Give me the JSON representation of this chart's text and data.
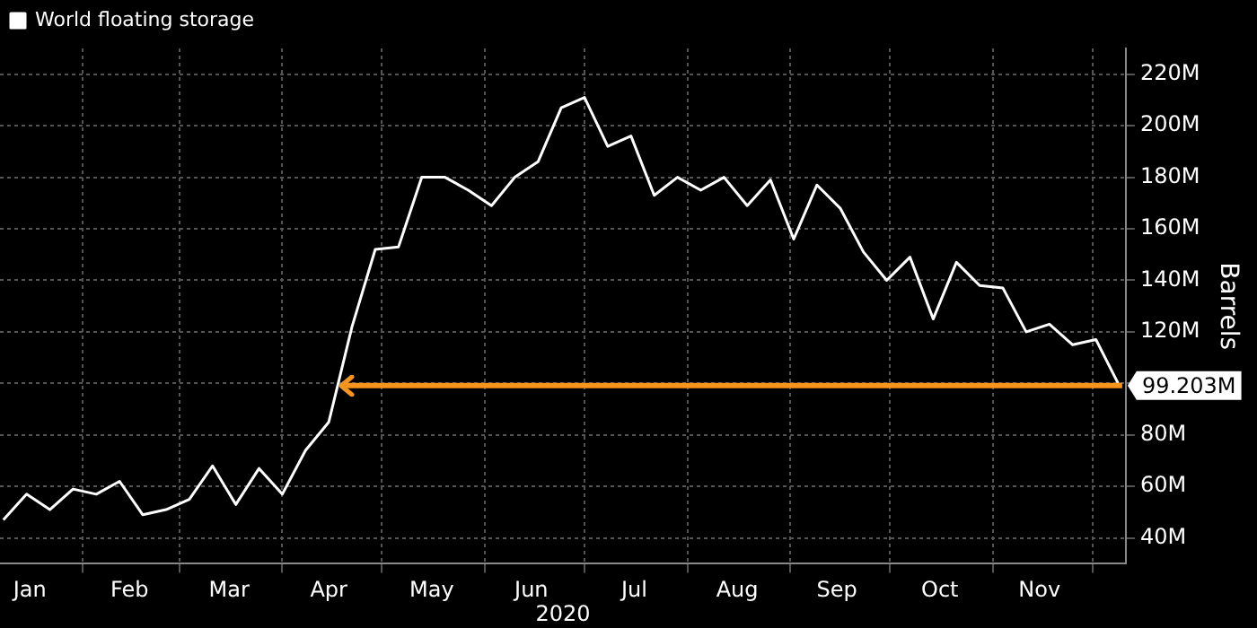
{
  "chart_data": {
    "type": "line",
    "xlabel": "2020",
    "ylabel": "Barrels",
    "x": [
      "2020-01-08",
      "2020-01-15",
      "2020-01-22",
      "2020-01-29",
      "2020-02-05",
      "2020-02-12",
      "2020-02-19",
      "2020-02-26",
      "2020-03-04",
      "2020-03-11",
      "2020-03-18",
      "2020-03-25",
      "2020-04-01",
      "2020-04-08",
      "2020-04-15",
      "2020-04-22",
      "2020-04-29",
      "2020-05-06",
      "2020-05-13",
      "2020-05-20",
      "2020-05-27",
      "2020-06-03",
      "2020-06-10",
      "2020-06-17",
      "2020-06-24",
      "2020-07-01",
      "2020-07-08",
      "2020-07-15",
      "2020-07-22",
      "2020-07-29",
      "2020-08-05",
      "2020-08-12",
      "2020-08-19",
      "2020-08-26",
      "2020-09-02",
      "2020-09-09",
      "2020-09-16",
      "2020-09-23",
      "2020-09-30",
      "2020-10-07",
      "2020-10-14",
      "2020-10-21",
      "2020-10-28",
      "2020-11-04",
      "2020-11-11",
      "2020-11-18",
      "2020-11-25",
      "2020-12-02",
      "2020-12-09"
    ],
    "series": [
      {
        "name": "World floating storage",
        "color": "#ffffff",
        "values": [
          47,
          57,
          51,
          59,
          57,
          62,
          49,
          51,
          55,
          68,
          53,
          67,
          57,
          74,
          85,
          122,
          152,
          153,
          180,
          180,
          175,
          169,
          180,
          186,
          207,
          211,
          192,
          196,
          173,
          180,
          175,
          180,
          169,
          179,
          156,
          177,
          168,
          151,
          140,
          149,
          125,
          147,
          138,
          137,
          120,
          123,
          115,
          117,
          99.2
        ]
      }
    ],
    "xlim": [
      "2020-01-07",
      "2020-12-11"
    ],
    "xticks": [
      {
        "value": "2020-01-16",
        "label": "Jan"
      },
      {
        "value": "2020-02-01",
        "label": null
      },
      {
        "value": "2020-02-15",
        "label": "Feb"
      },
      {
        "value": "2020-03-01",
        "label": null
      },
      {
        "value": "2020-03-16",
        "label": "Mar"
      },
      {
        "value": "2020-04-01",
        "label": null
      },
      {
        "value": "2020-04-15",
        "label": "Apr"
      },
      {
        "value": "2020-05-01",
        "label": null
      },
      {
        "value": "2020-05-16",
        "label": "May"
      },
      {
        "value": "2020-06-01",
        "label": null
      },
      {
        "value": "2020-06-15",
        "label": "Jun"
      },
      {
        "value": "2020-07-01",
        "label": null
      },
      {
        "value": "2020-07-16",
        "label": "Jul"
      },
      {
        "value": "2020-08-01",
        "label": null
      },
      {
        "value": "2020-08-16",
        "label": "Aug"
      },
      {
        "value": "2020-09-01",
        "label": null
      },
      {
        "value": "2020-09-15",
        "label": "Sep"
      },
      {
        "value": "2020-10-01",
        "label": null
      },
      {
        "value": "2020-10-16",
        "label": "Oct"
      },
      {
        "value": "2020-11-01",
        "label": null
      },
      {
        "value": "2020-11-15",
        "label": "Nov"
      },
      {
        "value": "2020-12-01",
        "label": null
      }
    ],
    "ylim": [
      30,
      230
    ],
    "yticks": [
      {
        "value": 40,
        "label": "40M"
      },
      {
        "value": 60,
        "label": "60M"
      },
      {
        "value": 80,
        "label": "80M"
      },
      {
        "value": 100,
        "label": null
      },
      {
        "value": 120,
        "label": "120M"
      },
      {
        "value": 140,
        "label": "140M"
      },
      {
        "value": 160,
        "label": "160M"
      },
      {
        "value": 180,
        "label": "180M"
      },
      {
        "value": 200,
        "label": "200M"
      },
      {
        "value": 220,
        "label": "220M"
      }
    ],
    "ref_lines": [
      {
        "axis": "y",
        "value": 99.203,
        "label": "99.203M",
        "color": "#f7941d"
      }
    ],
    "grid": true,
    "legend": "top left",
    "marker": "none",
    "line_style": "solid"
  }
}
